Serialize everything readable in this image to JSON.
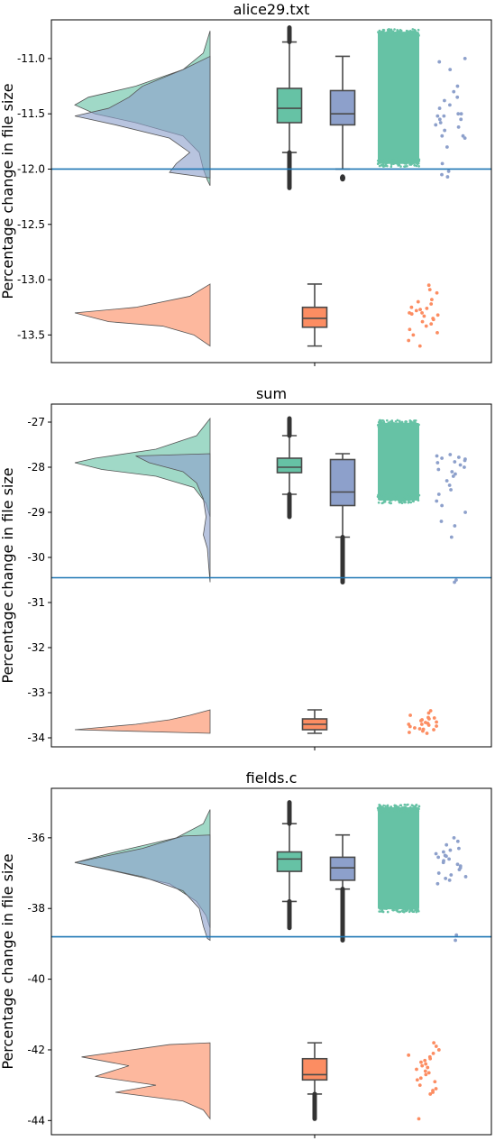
{
  "chart_data": [
    {
      "type": "raincloud",
      "title": "alice29.txt",
      "ylabel": "Percentage change in file size",
      "ylim": [
        -13.75,
        -10.65
      ],
      "yticks": [
        -11.0,
        -11.5,
        -12.0,
        -12.5,
        -13.0,
        -13.5
      ],
      "ytick_labels": [
        "-11.0",
        "-11.5",
        "-12.0",
        "-12.5",
        "-13.0",
        "-13.5"
      ],
      "reference_line": -12.0,
      "series": [
        {
          "color": "#66c2a5",
          "min": -12.17,
          "q1": -11.58,
          "median": -11.45,
          "q3": -11.27,
          "max": -10.72,
          "whisker_low": -11.85,
          "whisker_high": -10.85,
          "density": [
            [
              -10.75,
              0.0
            ],
            [
              -10.95,
              0.05
            ],
            [
              -11.1,
              0.2
            ],
            [
              -11.25,
              0.55
            ],
            [
              -11.35,
              0.9
            ],
            [
              -11.42,
              1.0
            ],
            [
              -11.5,
              0.85
            ],
            [
              -11.58,
              0.55
            ],
            [
              -11.7,
              0.2
            ],
            [
              -11.85,
              0.08
            ],
            [
              -12.0,
              0.05
            ],
            [
              -12.1,
              0.02
            ],
            [
              -12.15,
              0.0
            ]
          ]
        },
        {
          "color": "#8da0cb",
          "min": -12.08,
          "q1": -11.6,
          "median": -11.5,
          "q3": -11.29,
          "max": -10.98,
          "whisker_low": -12.0,
          "whisker_high": -10.98,
          "density": [
            [
              -10.98,
              0.0
            ],
            [
              -11.1,
              0.2
            ],
            [
              -11.25,
              0.5
            ],
            [
              -11.35,
              0.6
            ],
            [
              -11.45,
              0.75
            ],
            [
              -11.52,
              1.0
            ],
            [
              -11.6,
              0.7
            ],
            [
              -11.72,
              0.3
            ],
            [
              -11.85,
              0.15
            ],
            [
              -11.95,
              0.25
            ],
            [
              -12.03,
              0.3
            ],
            [
              -12.08,
              0.0
            ]
          ],
          "points": [
            -11.0,
            -11.03,
            -11.3,
            -11.35,
            -11.38,
            -11.42,
            -11.45,
            -11.5,
            -11.52,
            -11.52,
            -11.55,
            -11.55,
            -11.58,
            -11.6,
            -11.62,
            -11.65,
            -11.7,
            -11.7,
            -11.72,
            -11.8,
            -11.95,
            -12.02,
            -12.05,
            -12.07,
            -11.25,
            -11.1,
            -11.5
          ]
        },
        {
          "color": "#fc8d62",
          "min": -13.6,
          "q1": -13.43,
          "median": -13.35,
          "q3": -13.25,
          "max": -13.04,
          "whisker_low": -13.6,
          "whisker_high": -13.04,
          "density": [
            [
              -13.04,
              0.0
            ],
            [
              -13.15,
              0.15
            ],
            [
              -13.25,
              0.55
            ],
            [
              -13.3,
              1.0
            ],
            [
              -13.38,
              0.75
            ],
            [
              -13.42,
              0.35
            ],
            [
              -13.5,
              0.12
            ],
            [
              -13.6,
              0.0
            ]
          ],
          "points": [
            -13.05,
            -13.09,
            -13.12,
            -13.18,
            -13.2,
            -13.22,
            -13.25,
            -13.26,
            -13.28,
            -13.3,
            -13.3,
            -13.32,
            -13.33,
            -13.35,
            -13.36,
            -13.38,
            -13.4,
            -13.42,
            -13.45,
            -13.48,
            -13.5,
            -13.55,
            -13.6,
            -13.27,
            -13.31
          ]
        }
      ]
    },
    {
      "type": "raincloud",
      "title": "sum",
      "ylabel": "Percentage change in file size",
      "ylim": [
        -34.2,
        -26.6
      ],
      "yticks": [
        -27,
        -28,
        -29,
        -30,
        -31,
        -32,
        -33,
        -34
      ],
      "ytick_labels": [
        "-27",
        "-28",
        "-29",
        "-30",
        "-31",
        "-32",
        "-33",
        "-34"
      ],
      "reference_line": -30.45,
      "series": [
        {
          "color": "#66c2a5",
          "min": -29.1,
          "q1": -28.12,
          "median": -28.0,
          "q3": -27.8,
          "max": -26.92,
          "whisker_low": -28.6,
          "whisker_high": -27.3,
          "density": [
            [
              -26.92,
              0.0
            ],
            [
              -27.3,
              0.1
            ],
            [
              -27.6,
              0.4
            ],
            [
              -27.8,
              0.85
            ],
            [
              -27.9,
              1.0
            ],
            [
              -28.05,
              0.8
            ],
            [
              -28.2,
              0.4
            ],
            [
              -28.45,
              0.12
            ],
            [
              -28.8,
              0.03
            ],
            [
              -29.1,
              0.0
            ]
          ]
        },
        {
          "color": "#8da0cb",
          "min": -30.55,
          "q1": -28.85,
          "median": -28.55,
          "q3": -27.83,
          "max": -27.7,
          "whisker_low": -29.55,
          "whisker_high": -27.7,
          "density": [
            [
              -27.7,
              0.0
            ],
            [
              -27.75,
              0.55
            ],
            [
              -27.9,
              0.45
            ],
            [
              -28.1,
              0.2
            ],
            [
              -28.35,
              0.1
            ],
            [
              -28.7,
              0.05
            ],
            [
              -29.1,
              0.03
            ],
            [
              -29.5,
              0.05
            ],
            [
              -29.8,
              0.02
            ],
            [
              -30.2,
              0.01
            ],
            [
              -30.55,
              0.0
            ]
          ],
          "points": [
            -27.75,
            -27.78,
            -27.8,
            -27.82,
            -27.85,
            -27.88,
            -27.9,
            -27.95,
            -28.0,
            -28.05,
            -28.1,
            -28.15,
            -28.2,
            -28.3,
            -28.4,
            -28.5,
            -28.6,
            -28.75,
            -28.85,
            -29.0,
            -29.2,
            -29.3,
            -29.55,
            -30.5,
            -30.55,
            -27.72
          ]
        },
        {
          "color": "#fc8d62",
          "min": -33.9,
          "q1": -33.82,
          "median": -33.7,
          "q3": -33.58,
          "max": -33.38,
          "whisker_low": -33.9,
          "whisker_high": -33.38,
          "density": [
            [
              -33.38,
              0.0
            ],
            [
              -33.5,
              0.15
            ],
            [
              -33.6,
              0.3
            ],
            [
              -33.7,
              0.55
            ],
            [
              -33.82,
              1.0
            ],
            [
              -33.9,
              0.0
            ]
          ],
          "points": [
            -33.4,
            -33.45,
            -33.5,
            -33.55,
            -33.58,
            -33.6,
            -33.62,
            -33.65,
            -33.68,
            -33.7,
            -33.72,
            -33.75,
            -33.78,
            -33.8,
            -33.82,
            -33.85,
            -33.88,
            -33.9,
            -33.7,
            -33.66,
            -33.74,
            -33.56,
            -33.81
          ]
        }
      ]
    },
    {
      "type": "raincloud",
      "title": "fields.c",
      "ylabel": "Percentage change in file size",
      "ylim": [
        -44.4,
        -34.6
      ],
      "yticks": [
        -36,
        -38,
        -40,
        -42,
        -44
      ],
      "ytick_labels": [
        "-36",
        "-38",
        "-40",
        "-42",
        "-44"
      ],
      "reference_line": -38.8,
      "series": [
        {
          "color": "#66c2a5",
          "min": -38.55,
          "q1": -36.95,
          "median": -36.6,
          "q3": -36.4,
          "max": -35.0,
          "whisker_low": -37.8,
          "whisker_high": -35.6,
          "density": [
            [
              -35.2,
              0.0
            ],
            [
              -35.6,
              0.05
            ],
            [
              -36.0,
              0.25
            ],
            [
              -36.4,
              0.7
            ],
            [
              -36.7,
              1.0
            ],
            [
              -36.95,
              0.7
            ],
            [
              -37.3,
              0.3
            ],
            [
              -37.8,
              0.1
            ],
            [
              -38.2,
              0.03
            ],
            [
              -38.55,
              0.0
            ]
          ]
        },
        {
          "color": "#8da0cb",
          "min": -38.9,
          "q1": -37.2,
          "median": -36.85,
          "q3": -36.55,
          "max": -35.92,
          "whisker_low": -37.45,
          "whisker_high": -35.92,
          "density": [
            [
              -35.92,
              0.0
            ],
            [
              -35.95,
              0.2
            ],
            [
              -36.3,
              0.5
            ],
            [
              -36.7,
              1.0
            ],
            [
              -37.1,
              0.5
            ],
            [
              -37.5,
              0.2
            ],
            [
              -38.0,
              0.08
            ],
            [
              -38.5,
              0.05
            ],
            [
              -38.85,
              0.02
            ],
            [
              -38.9,
              0.0
            ]
          ],
          "points": [
            -36.1,
            -36.2,
            -36.3,
            -36.35,
            -36.4,
            -36.45,
            -36.5,
            -36.55,
            -36.6,
            -36.65,
            -36.7,
            -36.75,
            -36.8,
            -36.85,
            -36.9,
            -37.0,
            -37.05,
            -37.1,
            -37.15,
            -37.2,
            -37.3,
            -38.75,
            -38.9,
            -36.0,
            -36.52
          ]
        },
        {
          "color": "#fc8d62",
          "min": -43.95,
          "q1": -42.85,
          "median": -42.7,
          "q3": -42.25,
          "max": -41.8,
          "whisker_low": -43.25,
          "whisker_high": -41.8,
          "density": [
            [
              -41.8,
              0.0
            ],
            [
              -41.85,
              0.3
            ],
            [
              -42.2,
              0.95
            ],
            [
              -42.45,
              0.6
            ],
            [
              -42.75,
              0.85
            ],
            [
              -43.0,
              0.4
            ],
            [
              -43.2,
              0.7
            ],
            [
              -43.45,
              0.2
            ],
            [
              -43.7,
              0.05
            ],
            [
              -43.95,
              0.0
            ]
          ],
          "points": [
            -41.8,
            -41.9,
            -42.0,
            -42.1,
            -42.2,
            -42.25,
            -42.3,
            -42.35,
            -42.4,
            -42.45,
            -42.5,
            -42.55,
            -42.6,
            -42.65,
            -42.7,
            -42.8,
            -42.85,
            -42.9,
            -43.0,
            -43.1,
            -43.15,
            -43.2,
            -43.25,
            -43.95,
            -42.15
          ]
        }
      ]
    }
  ]
}
